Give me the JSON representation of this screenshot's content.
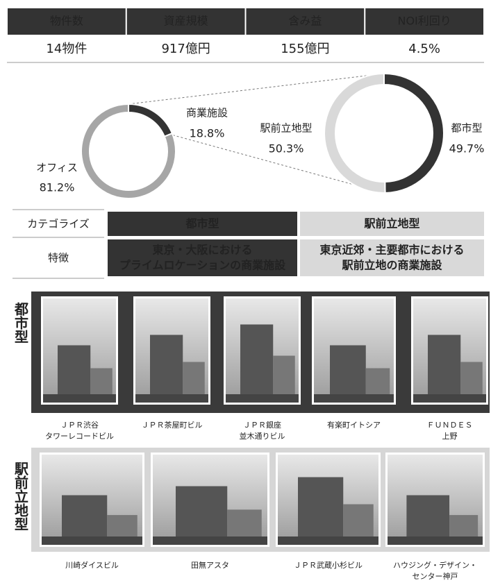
{
  "stats": {
    "headers": [
      "物件数",
      "資産規模",
      "含み益",
      "NOI利回り"
    ],
    "values": [
      "14物件",
      "917億円",
      "155億円",
      "4.5%"
    ]
  },
  "chart_data": [
    {
      "type": "pie",
      "categories": [
        "商業施設",
        "オフィス"
      ],
      "values": [
        18.8,
        81.2
      ],
      "value_labels": [
        "18.8%",
        "81.2%"
      ],
      "colors": [
        "#333333",
        "#a6a6a6"
      ]
    },
    {
      "type": "pie",
      "categories": [
        "都市型",
        "駅前立地型"
      ],
      "values": [
        49.7,
        50.3
      ],
      "value_labels": [
        "49.7%",
        "50.3%"
      ],
      "colors": [
        "#333333",
        "#d9d9d9"
      ]
    }
  ],
  "table": {
    "rows": [
      [
        "カテゴライズ",
        "都市型",
        "駅前立地型"
      ],
      [
        "特徴",
        "東京・大阪における\nプライムロケーションの商業施設",
        "東京近郊・主要都市における\n駅前立地の商業施設"
      ]
    ]
  },
  "sections": [
    {
      "label": "都市型",
      "properties": [
        [
          "ＪＰＲ渋谷",
          "タワーレコードビル"
        ],
        [
          "ＪＰＲ茶屋町ビル"
        ],
        [
          "ＪＰＲ銀座",
          "並木通りビル"
        ],
        [
          "有楽町イトシア"
        ],
        [
          "ＦＵＮＤＥＳ",
          "上野"
        ]
      ]
    },
    {
      "label": "駅前立地型",
      "properties": [
        [
          "川崎ダイスビル"
        ],
        [
          "田無アスタ"
        ],
        [
          "ＪＰＲ武蔵小杉ビル"
        ],
        [
          "ハウジング・デザイン・",
          "センター神戸"
        ]
      ]
    }
  ]
}
